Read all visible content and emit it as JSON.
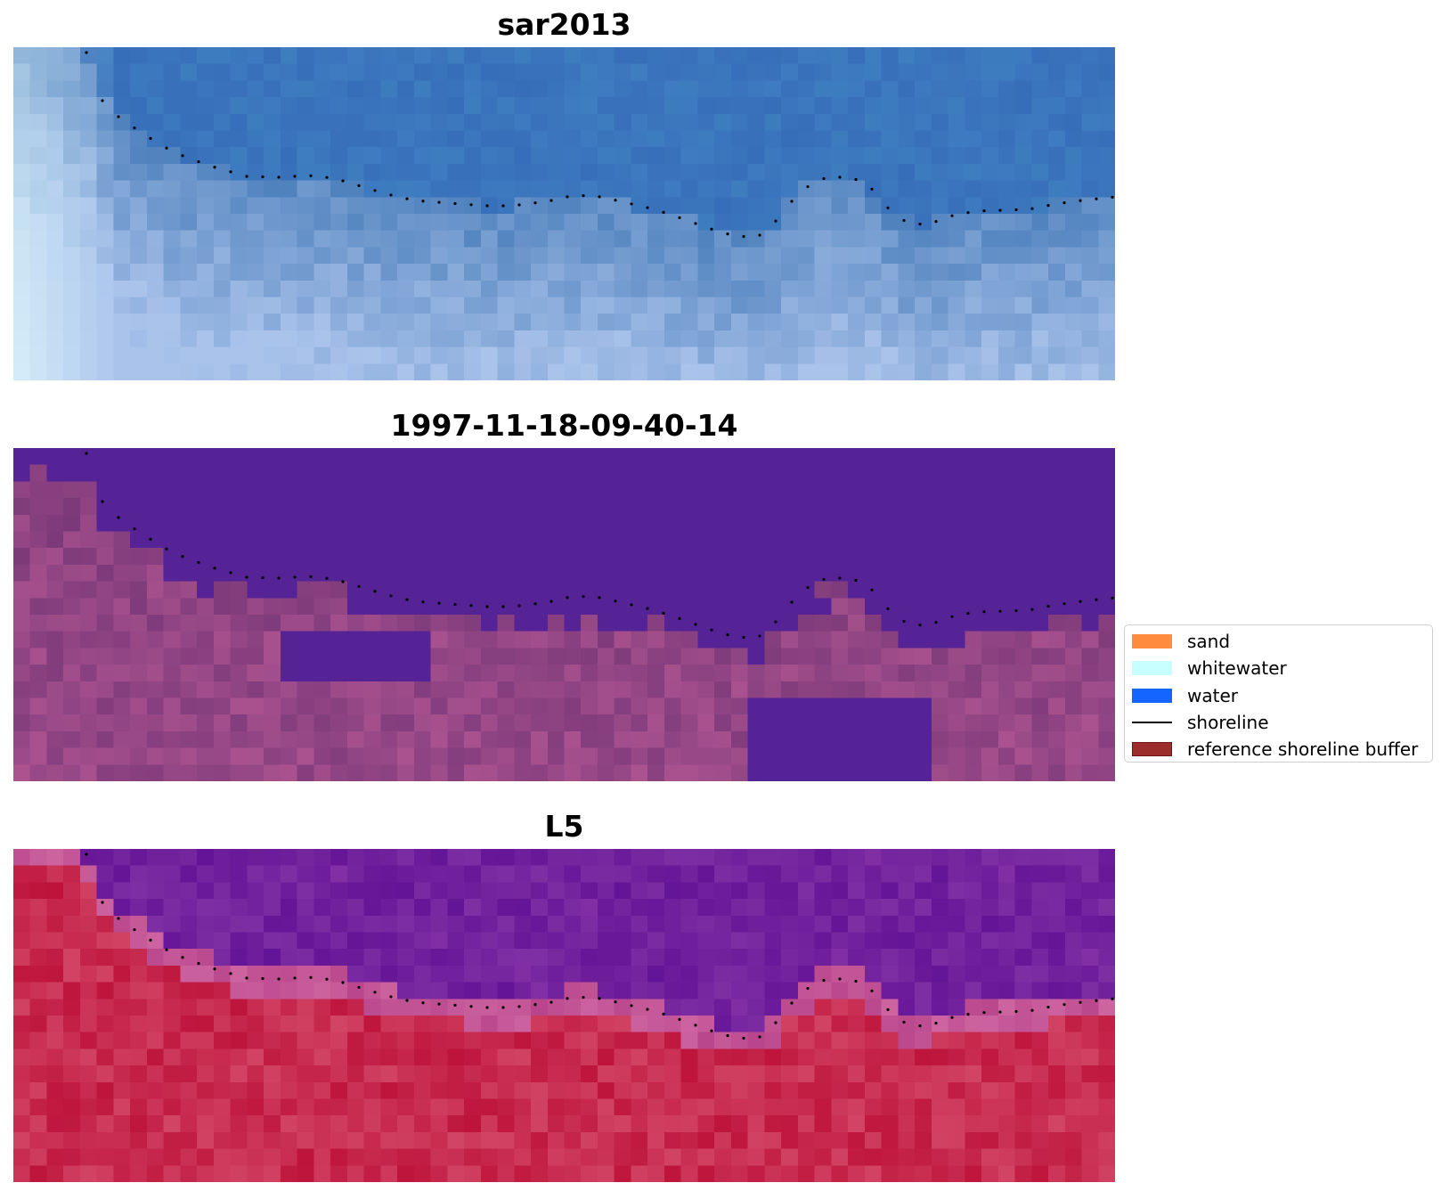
{
  "panels": [
    {
      "title": "sar2013",
      "palette": "sar"
    },
    {
      "title": "1997-11-18-09-40-14",
      "palette": "class"
    },
    {
      "title": "L5",
      "palette": "l5"
    }
  ],
  "legend": {
    "items": [
      {
        "label": "sand",
        "color": "#ff8c3c",
        "kind": "patch"
      },
      {
        "label": "whitewater",
        "color": "#c8ffff",
        "kind": "patch"
      },
      {
        "label": "water",
        "color": "#1464ff",
        "kind": "patch"
      },
      {
        "label": "shoreline",
        "color": "#000000",
        "kind": "line"
      },
      {
        "label": "reference shoreline buffer",
        "color": "#9b2d2d",
        "kind": "patch",
        "edge": "#6e1414"
      }
    ]
  }
}
